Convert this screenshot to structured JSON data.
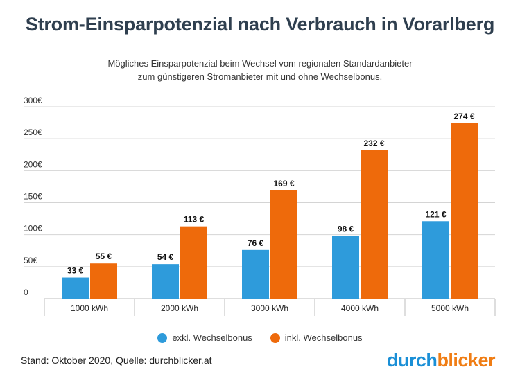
{
  "title": "Strom-Einsparpotenzial nach Verbrauch in Vorarlberg",
  "subtitle_line1": "Mögliches Einsparpotenzial beim Wechsel vom regionalen Standardanbieter",
  "subtitle_line2": "zum günstigeren Stromanbieter mit und ohne Wechselbonus.",
  "footer": "Stand: Oktober 2020, Quelle: durchblicker.at",
  "logo": {
    "part1": "durch",
    "part2": "blicker"
  },
  "colors": {
    "exkl": "#2e9bdb",
    "inkl": "#ee6a0b",
    "grid": "#d4d4d4",
    "axis": "#bdbdbd"
  },
  "chart_data": {
    "type": "bar",
    "categories": [
      "1000 kWh",
      "2000 kWh",
      "3000 kWh",
      "4000 kWh",
      "5000 kWh"
    ],
    "series": [
      {
        "name": "exkl. Wechselbonus",
        "values": [
          33,
          54,
          76,
          98,
          121
        ],
        "labels": [
          "33 €",
          "54 €",
          "76 €",
          "98 €",
          "121 €"
        ]
      },
      {
        "name": "inkl. Wechselbonus",
        "values": [
          55,
          113,
          169,
          232,
          274
        ],
        "labels": [
          "55 €",
          "113 €",
          "169 €",
          "232 €",
          "274 €"
        ]
      }
    ],
    "yticks": [
      0,
      50,
      100,
      150,
      200,
      250,
      300
    ],
    "ytick_labels": [
      "0",
      "50€",
      "100€",
      "150€",
      "200€",
      "250€",
      "300€"
    ],
    "ylim": [
      0,
      300
    ],
    "grid": true,
    "legend_position": "bottom"
  }
}
